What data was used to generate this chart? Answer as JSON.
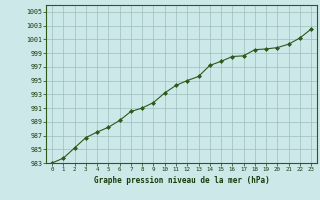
{
  "x": [
    0,
    1,
    2,
    3,
    4,
    5,
    6,
    7,
    8,
    9,
    10,
    11,
    12,
    13,
    14,
    15,
    16,
    17,
    18,
    19,
    20,
    21,
    22,
    23
  ],
  "y": [
    983.0,
    983.7,
    985.2,
    986.7,
    987.5,
    988.2,
    989.2,
    990.5,
    991.0,
    991.8,
    993.2,
    994.3,
    995.0,
    995.6,
    997.2,
    997.8,
    998.5,
    998.6,
    999.5,
    999.6,
    999.8,
    1000.3,
    1001.2,
    1002.5
  ],
  "xlim": [
    -0.5,
    23.5
  ],
  "ylim": [
    983,
    1006
  ],
  "yticks": [
    983,
    985,
    987,
    989,
    991,
    993,
    995,
    997,
    999,
    1001,
    1003,
    1005
  ],
  "xticks": [
    0,
    1,
    2,
    3,
    4,
    5,
    6,
    7,
    8,
    9,
    10,
    11,
    12,
    13,
    14,
    15,
    16,
    17,
    18,
    19,
    20,
    21,
    22,
    23
  ],
  "xlabel": "Graphe pression niveau de la mer (hPa)",
  "line_color": "#2d5a1b",
  "marker_color": "#2d5a1b",
  "bg_color": "#cce8e8",
  "grid_color": "#9dbfbf",
  "label_color": "#1a3a0a"
}
